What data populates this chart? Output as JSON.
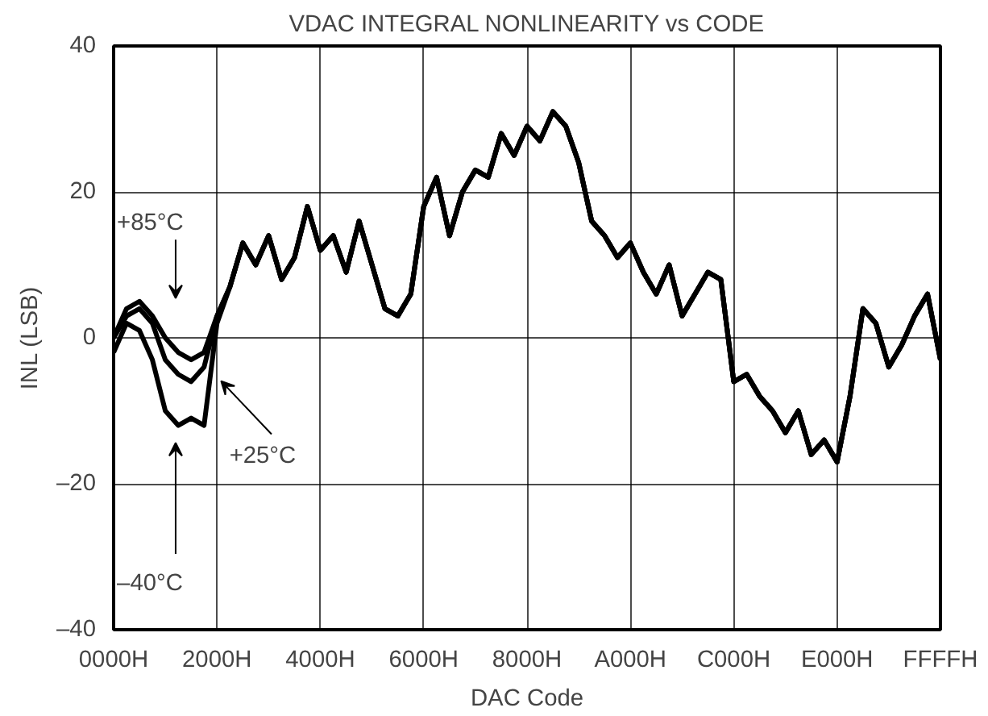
{
  "chart_data": {
    "type": "line",
    "title": "VDAC INTEGRAL NONLINEARITY vs CODE",
    "xlabel": "DAC Code",
    "ylabel": "INL (LSB)",
    "categories": [
      "0000H",
      null,
      null,
      null,
      null,
      null,
      null,
      null,
      "2000H",
      null,
      null,
      null,
      null,
      null,
      null,
      null,
      "4000H",
      null,
      null,
      null,
      null,
      null,
      null,
      null,
      "6000H",
      null,
      null,
      null,
      null,
      null,
      null,
      null,
      "8000H",
      null,
      null,
      null,
      null,
      null,
      null,
      null,
      "A000H",
      null,
      null,
      null,
      null,
      null,
      null,
      null,
      "C000H",
      null,
      null,
      null,
      null,
      null,
      null,
      null,
      "E000H",
      null,
      null,
      null,
      null,
      null,
      null,
      null,
      "FFFFH"
    ],
    "series": [
      {
        "color": "#000000",
        "values": [
          0,
          4,
          5,
          3,
          0,
          -2,
          -3,
          -2,
          3,
          7,
          13,
          10,
          14,
          8,
          11,
          18,
          12,
          14,
          9,
          16,
          10,
          4,
          3,
          6,
          18,
          22,
          14,
          20,
          23,
          22,
          28,
          25,
          29,
          27,
          31,
          29,
          24,
          16,
          14,
          11,
          13,
          9,
          6,
          10,
          3,
          6,
          9,
          8,
          -6,
          -5,
          -8,
          -10,
          -13,
          -10,
          -16,
          -14,
          -17,
          -8,
          4,
          2,
          -4,
          -1,
          3,
          6,
          -3
        ]
      },
      {
        "color": "#000000",
        "values": [
          0,
          3,
          4,
          2,
          -3,
          -5,
          -6,
          -4,
          3,
          7,
          13,
          10,
          14,
          8,
          11,
          18,
          12,
          14,
          9,
          16,
          10,
          4,
          3,
          6,
          18,
          22,
          14,
          20,
          23,
          22,
          28,
          25,
          29,
          27,
          31,
          29,
          24,
          16,
          14,
          11,
          13,
          9,
          6,
          10,
          3,
          6,
          9,
          8,
          -6,
          -5,
          -8,
          -10,
          -13,
          -10,
          -16,
          -14,
          -17,
          -8,
          4,
          2,
          -4,
          -1,
          3,
          6,
          -3
        ]
      },
      {
        "color": "#000000",
        "values": [
          -2,
          2,
          1,
          -3,
          -10,
          -12,
          -11,
          -12,
          2,
          7,
          13,
          10,
          14,
          8,
          11,
          18,
          12,
          14,
          9,
          16,
          10,
          4,
          3,
          6,
          18,
          22,
          14,
          20,
          23,
          22,
          28,
          25,
          29,
          27,
          31,
          29,
          24,
          16,
          14,
          11,
          13,
          9,
          6,
          10,
          3,
          6,
          9,
          8,
          -6,
          -5,
          -8,
          -10,
          -13,
          -10,
          -16,
          -14,
          -17,
          -8,
          4,
          2,
          -4,
          -1,
          3,
          6,
          -3
        ]
      }
    ],
    "ylim": [
      -40,
      40
    ],
    "yticks": [
      {
        "value": -40,
        "label": "–40"
      },
      {
        "value": -20,
        "label": "–20"
      },
      0,
      20,
      40
    ],
    "grid": true,
    "line_style": "solid",
    "annotations": [
      "+85°C",
      "+25°C",
      "–40°C"
    ]
  }
}
